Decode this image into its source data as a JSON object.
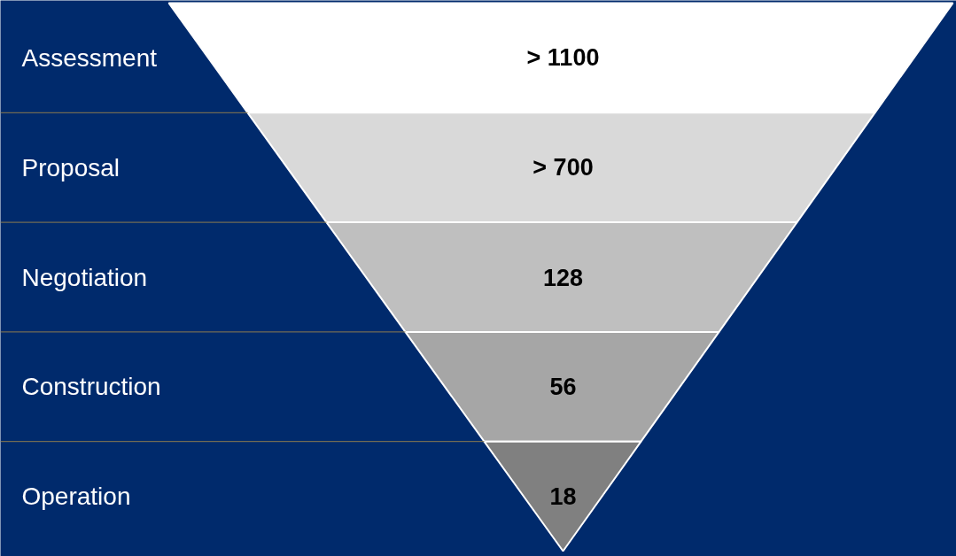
{
  "chart_data": {
    "type": "other",
    "categories": [
      "Assessment",
      "Proposal",
      "Negotiation",
      "Construction",
      "Operation"
    ],
    "values": [
      1100,
      700,
      128,
      56,
      18
    ],
    "value_labels": [
      "> 1100",
      "> 700",
      "128",
      "56",
      "18"
    ],
    "colors": [
      "#ffffff",
      "#d9d9d9",
      "#bfbfbf",
      "#a6a6a6",
      "#808080"
    ]
  }
}
